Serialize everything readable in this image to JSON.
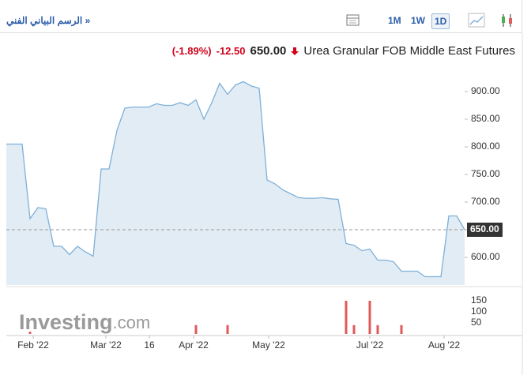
{
  "toolbar": {
    "link": "الرسم البياني الفني »",
    "periods": [
      "1M",
      "1W",
      "1D"
    ],
    "selected": 2
  },
  "header": {
    "change_pct": "(-1.89%)",
    "change": "-12.50",
    "price": "650.00",
    "name": "Urea Granular FOB Middle East Futures"
  },
  "chart_data": {
    "type": "area",
    "values": [
      805,
      805,
      805,
      670,
      690,
      688,
      620,
      620,
      605,
      620,
      610,
      602,
      760,
      760,
      830,
      870,
      872,
      872,
      872,
      878,
      875,
      875,
      880,
      875,
      885,
      850,
      880,
      915,
      895,
      912,
      918,
      910,
      906,
      740,
      733,
      722,
      715,
      708,
      707,
      707,
      708,
      706,
      705,
      625,
      622,
      612,
      615,
      595,
      595,
      592,
      575,
      575,
      575,
      565,
      565,
      565,
      675,
      675,
      650
    ],
    "color": "#7eb0d8",
    "fill": "#e2ecf5",
    "xlim": [
      0,
      58
    ],
    "xticks": [
      {
        "value": 3.4,
        "label": "Feb '22"
      },
      {
        "value": 12.6,
        "label": "Mar '22"
      },
      {
        "value": 18.1,
        "label": "16"
      },
      {
        "value": 23.7,
        "label": "Apr '22"
      },
      {
        "value": 33.2,
        "label": "May '22"
      },
      {
        "value": 46,
        "label": "Jul '22"
      },
      {
        "value": 55.4,
        "label": "Aug '22"
      }
    ],
    "ylim": [
      550,
      930
    ],
    "yticks": [
      {
        "value": 600,
        "label": "600.00"
      },
      {
        "value": 650,
        "label": "650.00"
      },
      {
        "value": 700,
        "label": "700.00"
      },
      {
        "value": 750,
        "label": "750.00"
      },
      {
        "value": 800,
        "label": "800.00"
      },
      {
        "value": 850,
        "label": "850.00"
      },
      {
        "value": 900,
        "label": "900.00"
      }
    ],
    "current": {
      "value": 650,
      "label": "650.00"
    },
    "volume": {
      "x": [
        3,
        24,
        28,
        43,
        44,
        46,
        47,
        50
      ],
      "values": [
        10,
        40,
        40,
        150,
        40,
        150,
        40,
        40
      ],
      "color": "#e05a5a"
    },
    "y2lim": [
      0,
      200
    ],
    "y2ticks": [
      50,
      100,
      150
    ],
    "watermark_main": "Investing",
    "watermark_suffix": ".com"
  }
}
